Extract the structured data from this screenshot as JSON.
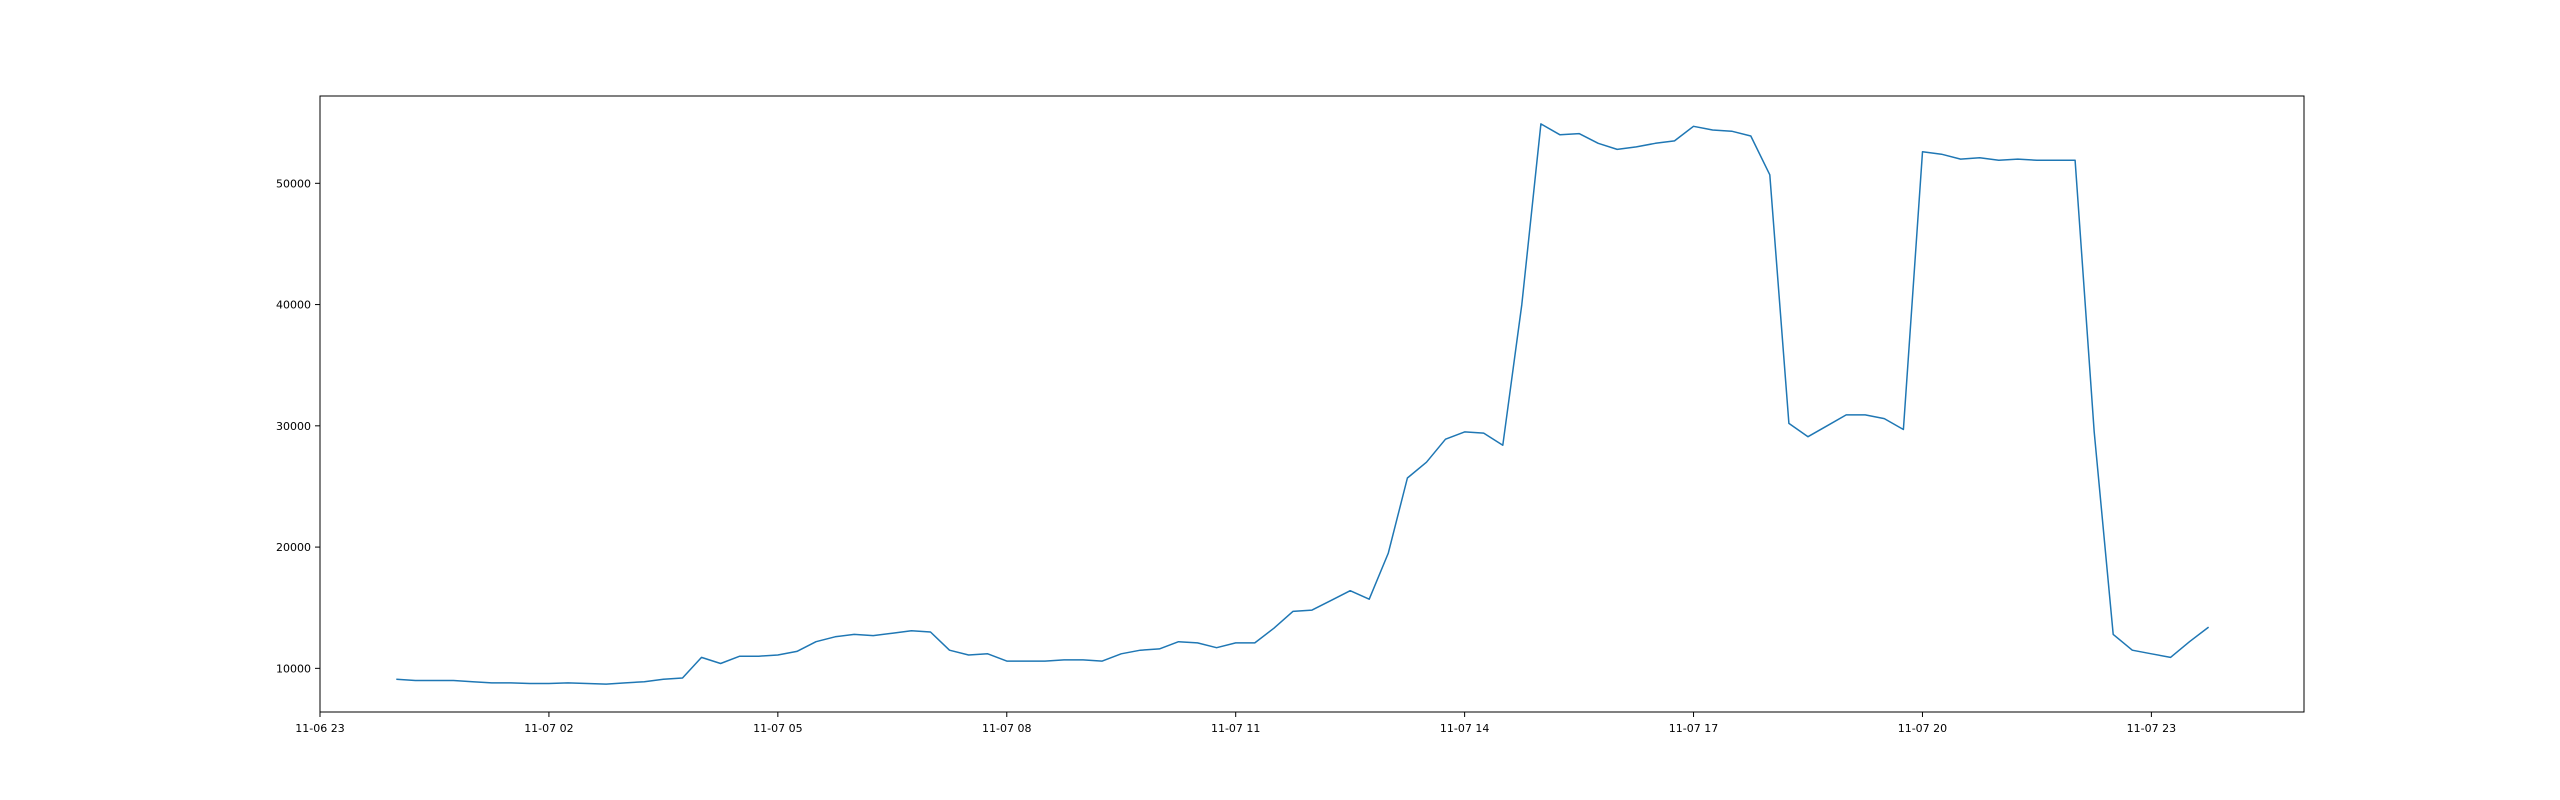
{
  "chart_data": {
    "type": "line",
    "title": "",
    "xlabel": "",
    "ylabel": "",
    "grid": false,
    "x_ticks": [
      "11-06 23",
      "11-07 02",
      "11-07 05",
      "11-07 08",
      "11-07 11",
      "11-07 14",
      "11-07 17",
      "11-07 20",
      "11-07 23"
    ],
    "y_ticks": [
      "10000",
      "20000",
      "30000",
      "40000",
      "50000"
    ],
    "xlim": [
      "2023-11-06 23:00",
      "2023-11-08 01:00"
    ],
    "ylim": [
      6400,
      57200
    ],
    "series": [
      {
        "color": "#1f77b4",
        "x": [
          "2023-11-07 00:00",
          "2023-11-07 00:15",
          "2023-11-07 00:30",
          "2023-11-07 00:45",
          "2023-11-07 01:00",
          "2023-11-07 01:15",
          "2023-11-07 01:30",
          "2023-11-07 01:45",
          "2023-11-07 02:00",
          "2023-11-07 02:15",
          "2023-11-07 02:30",
          "2023-11-07 02:45",
          "2023-11-07 03:00",
          "2023-11-07 03:15",
          "2023-11-07 03:30",
          "2023-11-07 03:45",
          "2023-11-07 04:00",
          "2023-11-07 04:15",
          "2023-11-07 04:30",
          "2023-11-07 04:45",
          "2023-11-07 05:00",
          "2023-11-07 05:15",
          "2023-11-07 05:30",
          "2023-11-07 05:45",
          "2023-11-07 06:00",
          "2023-11-07 06:15",
          "2023-11-07 06:30",
          "2023-11-07 06:45",
          "2023-11-07 07:00",
          "2023-11-07 07:15",
          "2023-11-07 07:30",
          "2023-11-07 07:45",
          "2023-11-07 08:00",
          "2023-11-07 08:15",
          "2023-11-07 08:30",
          "2023-11-07 08:45",
          "2023-11-07 09:00",
          "2023-11-07 09:15",
          "2023-11-07 09:30",
          "2023-11-07 09:45",
          "2023-11-07 10:00",
          "2023-11-07 10:15",
          "2023-11-07 10:30",
          "2023-11-07 10:45",
          "2023-11-07 11:00",
          "2023-11-07 11:15",
          "2023-11-07 11:30",
          "2023-11-07 11:45",
          "2023-11-07 12:00",
          "2023-11-07 12:15",
          "2023-11-07 12:30",
          "2023-11-07 12:45",
          "2023-11-07 13:00",
          "2023-11-07 13:15",
          "2023-11-07 13:30",
          "2023-11-07 13:45",
          "2023-11-07 14:00",
          "2023-11-07 14:15",
          "2023-11-07 14:30",
          "2023-11-07 14:45",
          "2023-11-07 15:00",
          "2023-11-07 15:15",
          "2023-11-07 15:30",
          "2023-11-07 15:45",
          "2023-11-07 16:00",
          "2023-11-07 16:15",
          "2023-11-07 16:30",
          "2023-11-07 16:45",
          "2023-11-07 17:00",
          "2023-11-07 17:15",
          "2023-11-07 17:30",
          "2023-11-07 17:45",
          "2023-11-07 18:00",
          "2023-11-07 18:15",
          "2023-11-07 18:30",
          "2023-11-07 18:45",
          "2023-11-07 19:00",
          "2023-11-07 19:15",
          "2023-11-07 19:30",
          "2023-11-07 19:45",
          "2023-11-07 20:00",
          "2023-11-07 20:15",
          "2023-11-07 20:30",
          "2023-11-07 20:45",
          "2023-11-07 21:00",
          "2023-11-07 21:15",
          "2023-11-07 21:30",
          "2023-11-07 21:45",
          "2023-11-07 22:00",
          "2023-11-07 22:15",
          "2023-11-07 22:30",
          "2023-11-07 22:45",
          "2023-11-07 23:00",
          "2023-11-07 23:15",
          "2023-11-07 23:30",
          "2023-11-07 23:45"
        ],
        "y": [
          9100,
          9000,
          9000,
          9000,
          8900,
          8800,
          8800,
          8750,
          8750,
          8800,
          8750,
          8700,
          8800,
          8900,
          9100,
          9200,
          10900,
          10400,
          11000,
          11000,
          11100,
          11400,
          12200,
          12600,
          12800,
          12700,
          12900,
          13100,
          13000,
          11500,
          11100,
          11200,
          10600,
          10600,
          10600,
          10700,
          10700,
          10600,
          11200,
          11500,
          11600,
          12200,
          12100,
          11700,
          12100,
          12100,
          13300,
          14700,
          14800,
          15600,
          16400,
          15700,
          19500,
          25700,
          27000,
          28900,
          29500,
          29400,
          28400,
          40000,
          54900,
          54000,
          54100,
          53300,
          52800,
          53000,
          53300,
          53500,
          54700,
          54400,
          54300,
          53900,
          50700,
          30200,
          29100,
          30000,
          30900,
          30900,
          30600,
          29700,
          52600,
          52400,
          52000,
          52100,
          51900,
          52000,
          51900,
          51900,
          51900,
          29500,
          12800,
          11500,
          11200,
          10900,
          12200,
          13400
        ]
      }
    ]
  }
}
